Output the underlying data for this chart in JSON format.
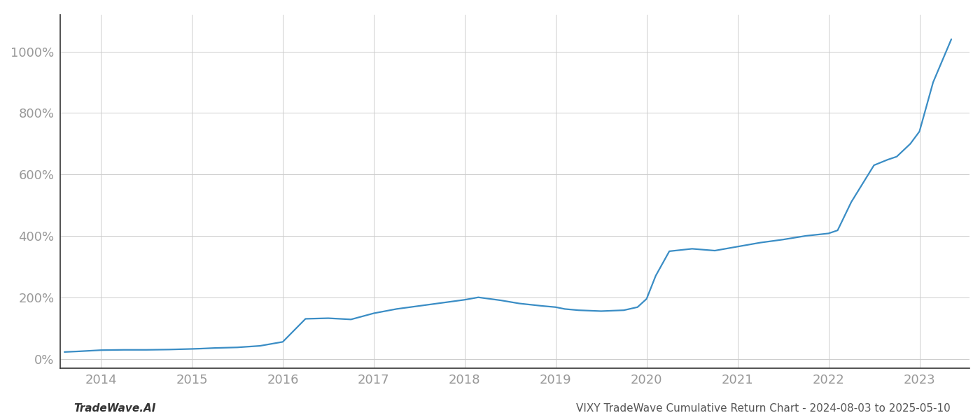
{
  "footer_left": "TradeWave.AI",
  "footer_right": "VIXY TradeWave Cumulative Return Chart - 2024-08-03 to 2025-05-10",
  "line_color": "#3a8dc5",
  "background_color": "#ffffff",
  "grid_color": "#cccccc",
  "x_values": [
    2013.6,
    2013.75,
    2014.0,
    2014.25,
    2014.5,
    2014.75,
    2015.0,
    2015.1,
    2015.25,
    2015.5,
    2015.75,
    2016.0,
    2016.25,
    2016.5,
    2016.75,
    2017.0,
    2017.25,
    2017.5,
    2017.75,
    2018.0,
    2018.15,
    2018.4,
    2018.6,
    2018.85,
    2019.0,
    2019.1,
    2019.25,
    2019.5,
    2019.75,
    2019.9,
    2020.0,
    2020.1,
    2020.25,
    2020.5,
    2020.75,
    2021.0,
    2021.25,
    2021.5,
    2021.75,
    2022.0,
    2022.1,
    2022.25,
    2022.5,
    2022.65,
    2022.75,
    2022.9,
    2023.0,
    2023.15,
    2023.35
  ],
  "y_values": [
    22,
    24,
    28,
    29,
    29,
    30,
    32,
    33,
    35,
    37,
    42,
    55,
    130,
    132,
    128,
    148,
    162,
    172,
    182,
    192,
    200,
    190,
    180,
    172,
    168,
    162,
    158,
    155,
    158,
    168,
    195,
    270,
    350,
    358,
    352,
    365,
    378,
    388,
    400,
    408,
    418,
    510,
    630,
    648,
    658,
    700,
    740,
    900,
    1040
  ],
  "xlim": [
    2013.55,
    2023.55
  ],
  "ylim": [
    -30,
    1120
  ],
  "yticks": [
    0,
    200,
    400,
    600,
    800,
    1000
  ],
  "xticks": [
    2014,
    2015,
    2016,
    2017,
    2018,
    2019,
    2020,
    2021,
    2022,
    2023
  ],
  "xtick_labels": [
    "2014",
    "2015",
    "2016",
    "2017",
    "2018",
    "2019",
    "2020",
    "2021",
    "2022",
    "2023"
  ],
  "ytick_labels": [
    "0%",
    "200%",
    "400%",
    "600%",
    "800%",
    "1000%"
  ],
  "line_width": 1.6,
  "left_spine_color": "#333333",
  "bottom_spine_color": "#333333",
  "tick_label_color": "#999999",
  "tick_label_fontsize": 13,
  "footer_left_color": "#333333",
  "footer_right_color": "#555555",
  "footer_fontsize": 11
}
